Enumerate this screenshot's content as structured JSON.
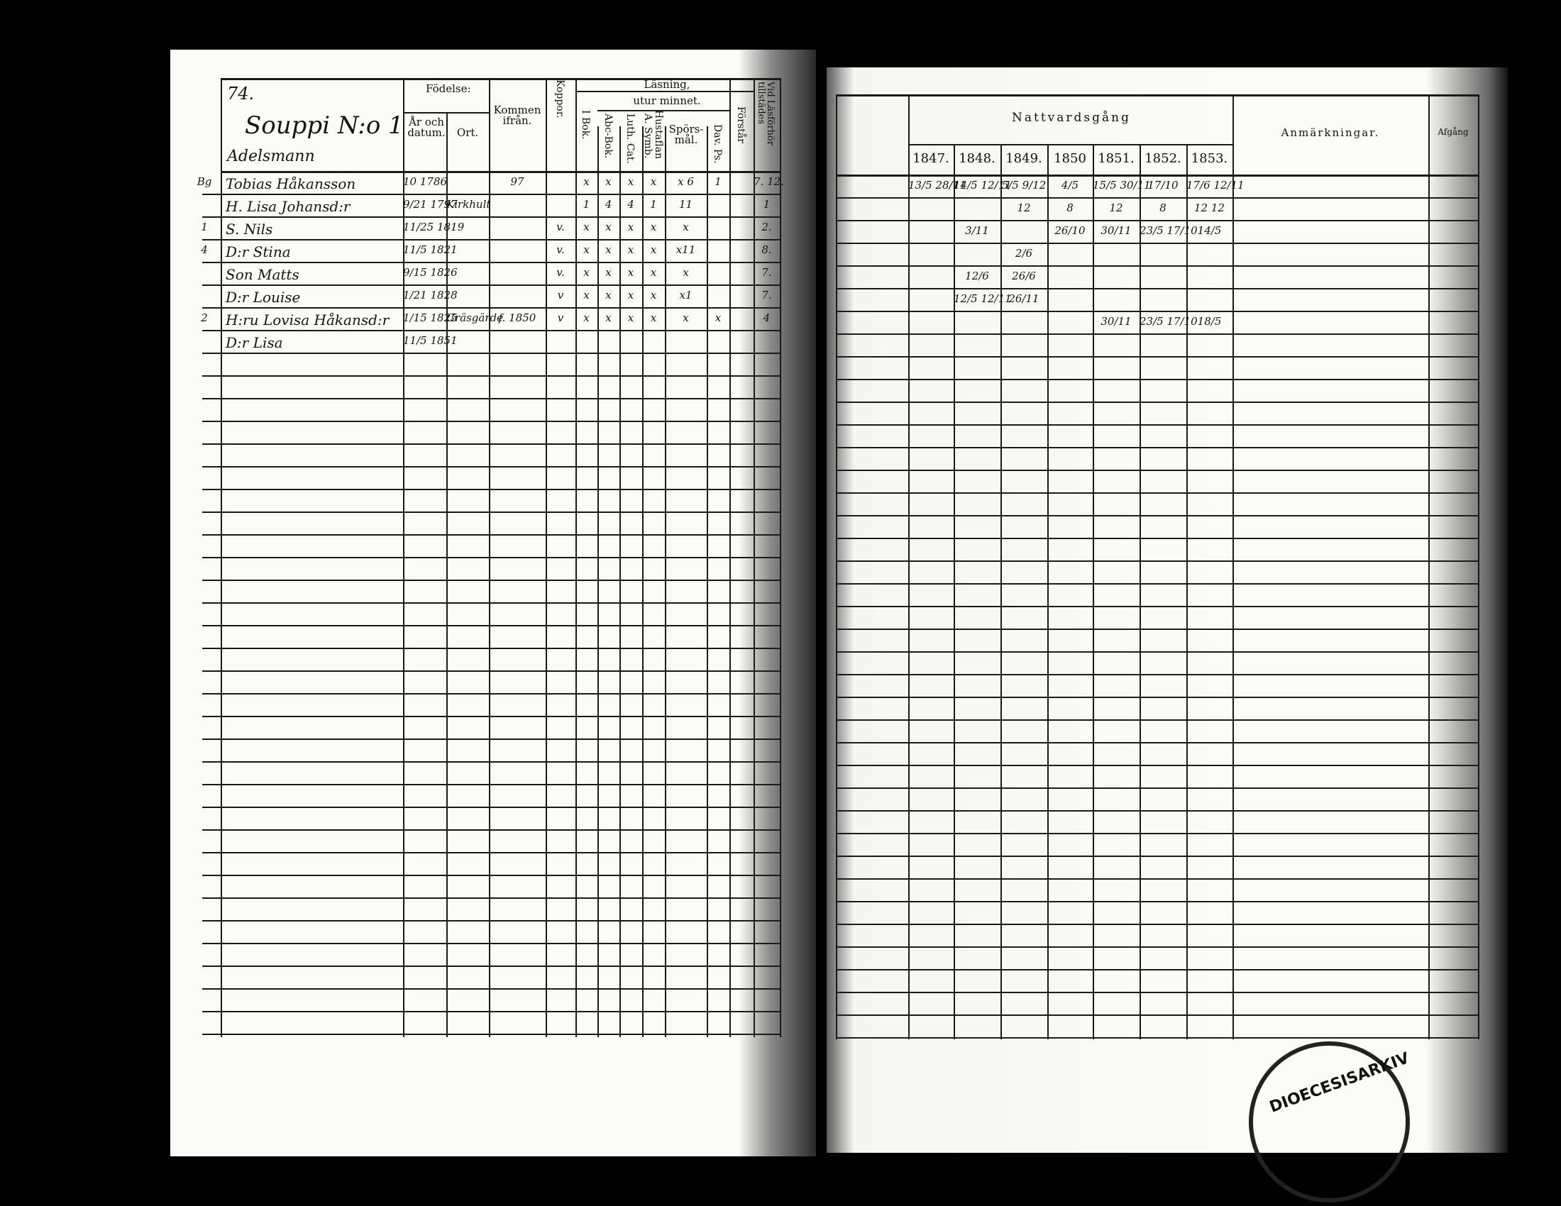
{
  "left_page": {
    "page_number": "74.",
    "household_title": "Souppi N:o 1",
    "section_label": "Adelsmann",
    "headers": {
      "fodelse": "Födelse:",
      "ar_och_datum": "År och datum.",
      "ort": "Ort.",
      "kommen_ifran": "Kommen ifrån.",
      "koppor": "Koppor.",
      "lasning": "Läsning,",
      "utur_minnet": "utur minnet.",
      "i_bok": "I Bok.",
      "abc_bok": "Abc-Bok.",
      "luth_cat": "Luth. Cat.",
      "a_symb": "A. Symb.",
      "hustaflan": "Hustaflan",
      "sporsmal": "Spörs-mål.",
      "dav_ps": "Dav. Ps.",
      "forstar": "Förstår",
      "vid_lasforhor": "Vid Läsförhör tillstädes"
    },
    "rows": [
      {
        "prefix": "Bg",
        "name": "Tobias Håkansson",
        "birth": "10 1786",
        "ort": "",
        "kommen": "97",
        "koppor": "",
        "marks": [
          "x",
          "x",
          "x",
          "x",
          "x 6",
          "1",
          ""
        ],
        "vid": "7. 12."
      },
      {
        "prefix": "",
        "name": "H. Lisa Johansd:r",
        "birth": "9/21 1797",
        "ort": "Kirkhult",
        "kommen": "",
        "koppor": "",
        "marks": [
          "1",
          "4",
          "4",
          "1",
          "11",
          "",
          ""
        ],
        "vid": "1"
      },
      {
        "prefix": "1",
        "name": "S. Nils",
        "birth": "11/25 1819",
        "ort": "",
        "kommen": "",
        "koppor": "v.",
        "marks": [
          "x",
          "x",
          "x",
          "x",
          "x",
          "",
          ""
        ],
        "vid": "2."
      },
      {
        "prefix": "4",
        "name": "D:r Stina",
        "birth": "11/5 1821",
        "ort": "",
        "kommen": "",
        "koppor": "v.",
        "marks": [
          "x",
          "x",
          "x",
          "x",
          "x11",
          "",
          ""
        ],
        "vid": "8."
      },
      {
        "prefix": "",
        "name": "Son Matts",
        "birth": "9/15 1826",
        "ort": "",
        "kommen": "",
        "koppor": "v.",
        "marks": [
          "x",
          "x",
          "x",
          "x",
          "x",
          "",
          ""
        ],
        "vid": "7."
      },
      {
        "prefix": "",
        "name": "D:r Louise",
        "birth": "1/21 1828",
        "ort": "",
        "kommen": "",
        "koppor": "v",
        "marks": [
          "x",
          "x",
          "x",
          "x",
          "x1",
          "",
          ""
        ],
        "vid": "7."
      },
      {
        "prefix": "2",
        "name": "H:ru Lovisa Håkansd:r",
        "birth": "1/15 1825",
        "ort": "Gräsgärde",
        "kommen": "f. 1850",
        "koppor": "v",
        "marks": [
          "x",
          "x",
          "x",
          "x",
          "x",
          "x",
          ""
        ],
        "vid": "4"
      },
      {
        "prefix": "",
        "name": "D:r Lisa",
        "birth": "11/5 1851",
        "ort": "",
        "kommen": "",
        "koppor": "",
        "marks": [
          "",
          "",
          "",
          "",
          "",
          "",
          ""
        ],
        "vid": ""
      }
    ]
  },
  "right_page": {
    "nattvardsgang": "Nattvardsgång",
    "years": [
      "1847.",
      "1848.",
      "1849.",
      "1850",
      "1851.",
      "1852.",
      "1853."
    ],
    "anmarkningar": "Anmärkningar.",
    "last_header": "Afgång",
    "rows": [
      [
        "13/5 28/11",
        "14/5 12/11",
        "5/5 9/12",
        "4/5",
        "15/5 30/11",
        "17/10",
        "17/6 12/11"
      ],
      [
        "",
        "",
        "12",
        "8",
        "12",
        "8",
        "12 12"
      ],
      [
        "",
        "3/11",
        "",
        "26/10",
        "30/11",
        "23/5 17/10",
        "14/5"
      ],
      [
        "",
        "",
        "2/6",
        "",
        "",
        "",
        ""
      ],
      [
        "",
        "12/6",
        "26/6",
        "",
        "",
        "",
        ""
      ],
      [
        "",
        "12/5 12/11",
        "26/11",
        "",
        "",
        "",
        ""
      ],
      [
        "",
        "",
        "",
        "",
        "30/11",
        "23/5 17/10",
        "18/5"
      ]
    ]
  },
  "stamp_text": "DIOECESISARKIV"
}
